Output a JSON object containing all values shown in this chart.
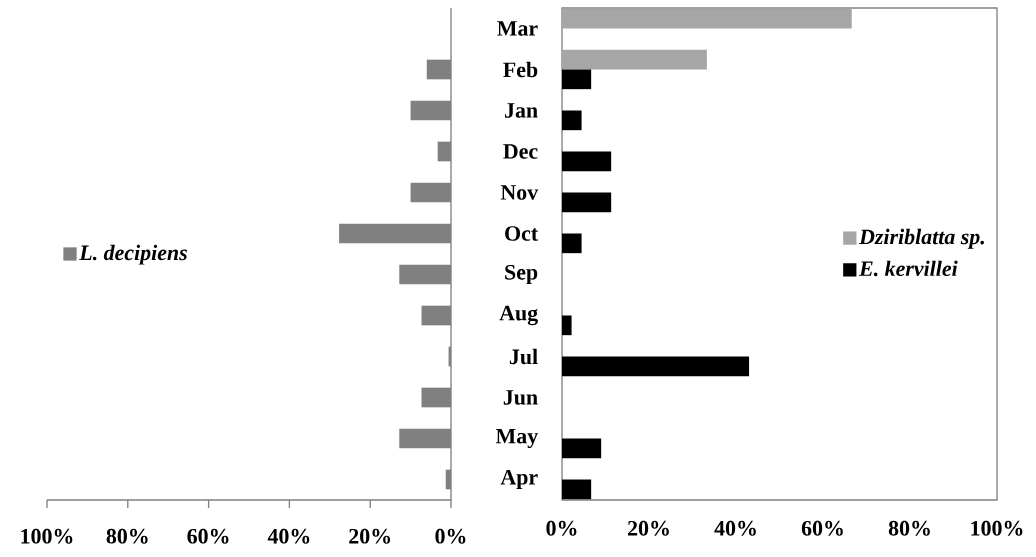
{
  "chart_data": [
    {
      "type": "bar",
      "orientation": "horizontal",
      "categories": [
        null,
        null,
        null,
        null,
        null,
        null,
        null,
        null,
        null,
        null,
        null,
        null
      ],
      "series": [
        {
          "name": "L. decipiens",
          "color": "#808080",
          "values": [
            null,
            6,
            10,
            3.3,
            10,
            27.7,
            12.8,
            7.3,
            0.6,
            7.3,
            12.8,
            1.3
          ]
        }
      ],
      "xlim": [
        100,
        0
      ],
      "xticks": [
        {
          "value": 100,
          "label": "100%"
        },
        {
          "value": 80,
          "label": "80%"
        },
        {
          "value": 60,
          "label": "60%"
        },
        {
          "value": 40,
          "label": "40%"
        },
        {
          "value": 20,
          "label": "20%"
        },
        {
          "value": 0,
          "label": "0%"
        }
      ],
      "tick_labels": "x",
      "legend": "left"
    },
    {
      "type": "bar",
      "orientation": "horizontal",
      "categories": [
        "Mar",
        "Feb",
        "Jan",
        "Dec",
        "Nov",
        "Oct",
        "Sep",
        "Aug",
        "Jul",
        "Jun",
        "May",
        "Apr"
      ],
      "series": [
        {
          "name": "Dziriblatta sp.",
          "color": "#a6a6a6",
          "values": [
            66.6,
            33.3,
            null,
            null,
            null,
            null,
            null,
            null,
            null,
            null,
            null,
            null
          ]
        },
        {
          "name": "E. kervillei",
          "color": "#000000",
          "values": [
            null,
            6.7,
            4.5,
            11.3,
            11.3,
            4.5,
            null,
            2.2,
            43,
            null,
            9,
            6.7
          ]
        }
      ],
      "xlim": [
        0,
        100
      ],
      "xticks": [
        {
          "value": 0,
          "label": "0%"
        },
        {
          "value": 20,
          "label": "20%"
        },
        {
          "value": 40,
          "label": "40%"
        },
        {
          "value": 60,
          "label": "60%"
        },
        {
          "value": 80,
          "label": "80%"
        },
        {
          "value": 100,
          "label": "100%"
        }
      ],
      "legend": "right"
    }
  ]
}
